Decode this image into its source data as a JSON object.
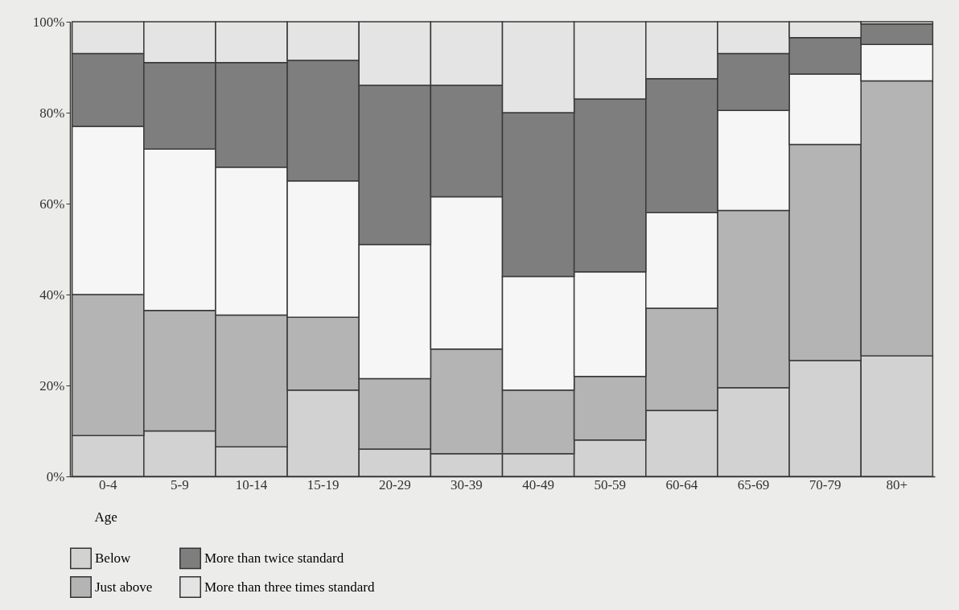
{
  "chart_data": {
    "type": "bar",
    "stacked": true,
    "xlabel": "Age",
    "categories": [
      "0-4",
      "5-9",
      "10-14",
      "15-19",
      "20-29",
      "30-39",
      "40-49",
      "50-59",
      "60-64",
      "65-69",
      "70-79",
      "80+"
    ],
    "series": [
      {
        "name": "Below",
        "color": "#d2d2d2",
        "values": [
          9,
          10,
          6.5,
          19,
          6,
          5,
          5,
          8,
          14.5,
          19.5,
          25.5,
          26.5
        ]
      },
      {
        "name": "Just above",
        "color": "#b4b4b4",
        "values": [
          31,
          26.5,
          29,
          16,
          15.5,
          23,
          14,
          14,
          22.5,
          39,
          47.5,
          60.5
        ]
      },
      {
        "color": "#f6f6f6",
        "values": [
          37,
          35.5,
          32.5,
          30,
          29.5,
          33.5,
          25,
          23,
          21,
          22,
          15.5,
          8
        ]
      },
      {
        "name": "More than twice standard",
        "color": "#7e7e7e",
        "values": [
          16,
          19,
          23,
          26.5,
          35,
          24.5,
          36,
          38,
          29.5,
          12.5,
          8,
          4.5
        ]
      },
      {
        "name": "More than three times standard",
        "color": "#e4e4e4",
        "values": [
          7,
          9,
          9,
          8.5,
          14,
          14,
          20,
          17,
          12.5,
          7,
          3.5,
          0.5
        ]
      }
    ],
    "ylim": [
      0,
      100
    ],
    "yticks": [
      {
        "value": 0,
        "label": "0%"
      },
      {
        "value": 20,
        "label": "20%"
      },
      {
        "value": 40,
        "label": "40%"
      },
      {
        "value": 60,
        "label": "60%"
      },
      {
        "value": 80,
        "label": "80%"
      },
      {
        "value": 100,
        "label": "100%"
      }
    ],
    "grid": false,
    "legend": "bottom"
  }
}
